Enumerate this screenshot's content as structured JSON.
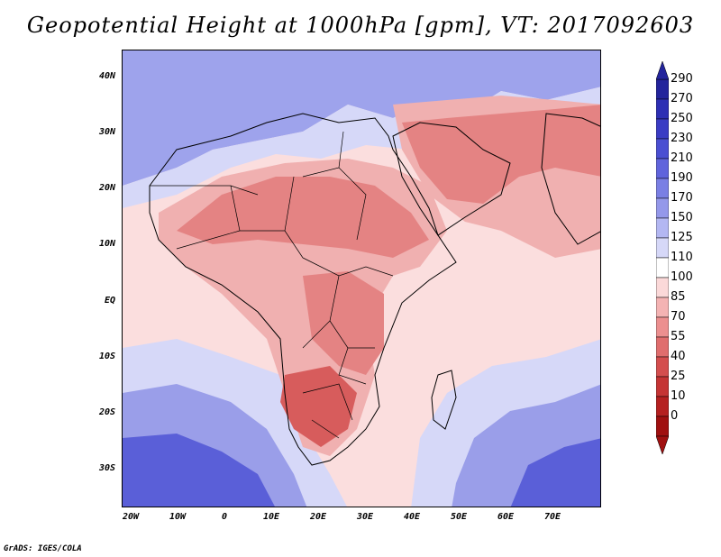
{
  "title": "Geopotential Height at 1000hPa [gpm], VT: 2017092603",
  "credit": "GrADS: IGES/COLA",
  "lat_labels": [
    "40N",
    "30N",
    "20N",
    "10N",
    "EQ",
    "10S",
    "20S",
    "30S"
  ],
  "lon_labels": [
    "20W",
    "10W",
    "0",
    "10E",
    "20E",
    "30E",
    "40E",
    "50E",
    "60E",
    "70E"
  ],
  "colorbar": {
    "labels": [
      "290",
      "270",
      "250",
      "230",
      "210",
      "190",
      "170",
      "150",
      "125",
      "110",
      "100",
      "85",
      "70",
      "55",
      "40",
      "25",
      "10",
      "0"
    ],
    "colors": [
      "#23249c",
      "#2d2fb4",
      "#3a3cc4",
      "#4a4fd2",
      "#6064dc",
      "#7a7fe4",
      "#9498ea",
      "#b3b7f2",
      "#d6d8f8",
      "#ffffff",
      "#fbd9d9",
      "#f4b3b3",
      "#ec8f8f",
      "#e06d6d",
      "#d44e4e",
      "#c53434",
      "#b52020",
      "#a01010"
    ]
  },
  "regions": {
    "ocean_high_south": "#5a5fd8",
    "ocean_mid_south": "#9a9ee9",
    "ocean_low": "#d6d8f8",
    "neutral": "#fbdede",
    "land_mid": "#f0b0b0",
    "land_low": "#e48383",
    "land_min": "#d75c5c",
    "north_high": "#9ea3ec"
  }
}
